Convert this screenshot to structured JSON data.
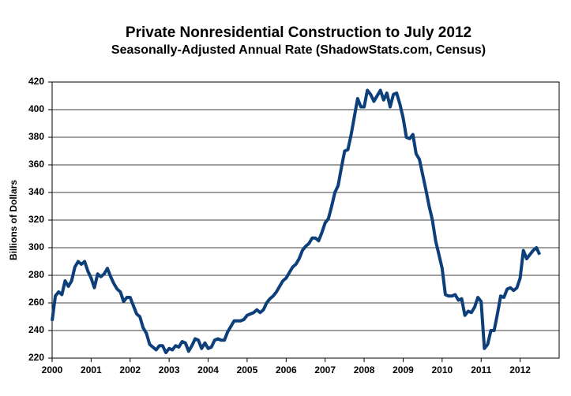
{
  "chart_data": {
    "type": "line",
    "title": "Private Nonresidential Construction to July 2012",
    "subtitle": "Seasonally-Adjusted Annual Rate (ShadowStats.com, Census)",
    "y_label": "Billions of Dollars",
    "xlim": [
      2000,
      2013
    ],
    "xticks": [
      2000,
      2001,
      2002,
      2003,
      2004,
      2005,
      2006,
      2007,
      2008,
      2009,
      2010,
      2011,
      2012
    ],
    "ylim": [
      220,
      420
    ],
    "yticks": [
      220,
      240,
      260,
      280,
      300,
      320,
      340,
      360,
      380,
      400,
      420
    ],
    "grid": true,
    "x": [
      2000,
      2000.083,
      2000.167,
      2000.25,
      2000.333,
      2000.417,
      2000.5,
      2000.583,
      2000.667,
      2000.75,
      2000.833,
      2000.917,
      2001,
      2001.083,
      2001.167,
      2001.25,
      2001.333,
      2001.417,
      2001.5,
      2001.583,
      2001.667,
      2001.75,
      2001.833,
      2001.917,
      2002,
      2002.083,
      2002.167,
      2002.25,
      2002.333,
      2002.417,
      2002.5,
      2002.583,
      2002.667,
      2002.75,
      2002.833,
      2002.917,
      2003,
      2003.083,
      2003.167,
      2003.25,
      2003.333,
      2003.417,
      2003.5,
      2003.583,
      2003.667,
      2003.75,
      2003.833,
      2003.917,
      2004,
      2004.083,
      2004.167,
      2004.25,
      2004.333,
      2004.417,
      2004.5,
      2004.583,
      2004.667,
      2004.75,
      2004.833,
      2004.917,
      2005,
      2005.083,
      2005.167,
      2005.25,
      2005.333,
      2005.417,
      2005.5,
      2005.583,
      2005.667,
      2005.75,
      2005.833,
      2005.917,
      2006,
      2006.083,
      2006.167,
      2006.25,
      2006.333,
      2006.417,
      2006.5,
      2006.583,
      2006.667,
      2006.75,
      2006.833,
      2006.917,
      2007,
      2007.083,
      2007.167,
      2007.25,
      2007.333,
      2007.417,
      2007.5,
      2007.583,
      2007.667,
      2007.75,
      2007.833,
      2007.917,
      2008,
      2008.083,
      2008.167,
      2008.25,
      2008.333,
      2008.417,
      2008.5,
      2008.583,
      2008.667,
      2008.75,
      2008.833,
      2008.917,
      2009,
      2009.083,
      2009.167,
      2009.25,
      2009.333,
      2009.417,
      2009.5,
      2009.583,
      2009.667,
      2009.75,
      2009.833,
      2009.917,
      2010,
      2010.083,
      2010.167,
      2010.25,
      2010.333,
      2010.417,
      2010.5,
      2010.583,
      2010.667,
      2010.75,
      2010.833,
      2010.917,
      2011,
      2011.083,
      2011.167,
      2011.25,
      2011.333,
      2011.417,
      2011.5,
      2011.583,
      2011.667,
      2011.75,
      2011.833,
      2011.917,
      2012,
      2012.083,
      2012.167,
      2012.25,
      2012.333,
      2012.417,
      2012.5
    ],
    "series": [
      {
        "color": "#0d3f7a",
        "values": [
          247,
          265,
          268,
          266,
          276,
          272,
          276,
          286,
          290,
          288,
          290,
          283,
          278,
          271,
          281,
          279,
          281,
          285,
          279,
          274,
          270,
          268,
          261,
          264,
          264,
          258,
          252,
          250,
          242,
          238,
          230,
          228,
          226,
          229,
          229,
          224,
          227,
          226,
          229,
          228,
          232,
          231,
          225,
          229,
          234,
          233,
          227,
          231,
          227,
          228,
          233,
          234,
          233,
          233,
          239,
          243,
          247,
          247,
          247,
          248,
          251,
          252,
          253,
          255,
          253,
          255,
          260,
          263,
          265,
          268,
          272,
          276,
          278,
          282,
          286,
          288,
          292,
          298,
          301,
          303,
          307,
          307,
          305,
          311,
          318,
          321,
          330,
          340,
          345,
          358,
          370,
          371,
          382,
          395,
          408,
          402,
          402,
          414,
          411,
          406,
          410,
          414,
          407,
          412,
          402,
          411,
          412,
          404,
          394,
          380,
          379,
          382,
          368,
          364,
          353,
          342,
          330,
          320,
          305,
          295,
          285,
          266,
          265,
          265,
          266,
          262,
          263,
          251,
          254,
          253,
          257,
          264,
          261,
          227,
          230,
          240,
          240,
          252,
          265,
          264,
          270,
          271,
          269,
          271,
          278,
          298,
          292,
          295,
          298,
          300,
          295
        ]
      }
    ]
  }
}
